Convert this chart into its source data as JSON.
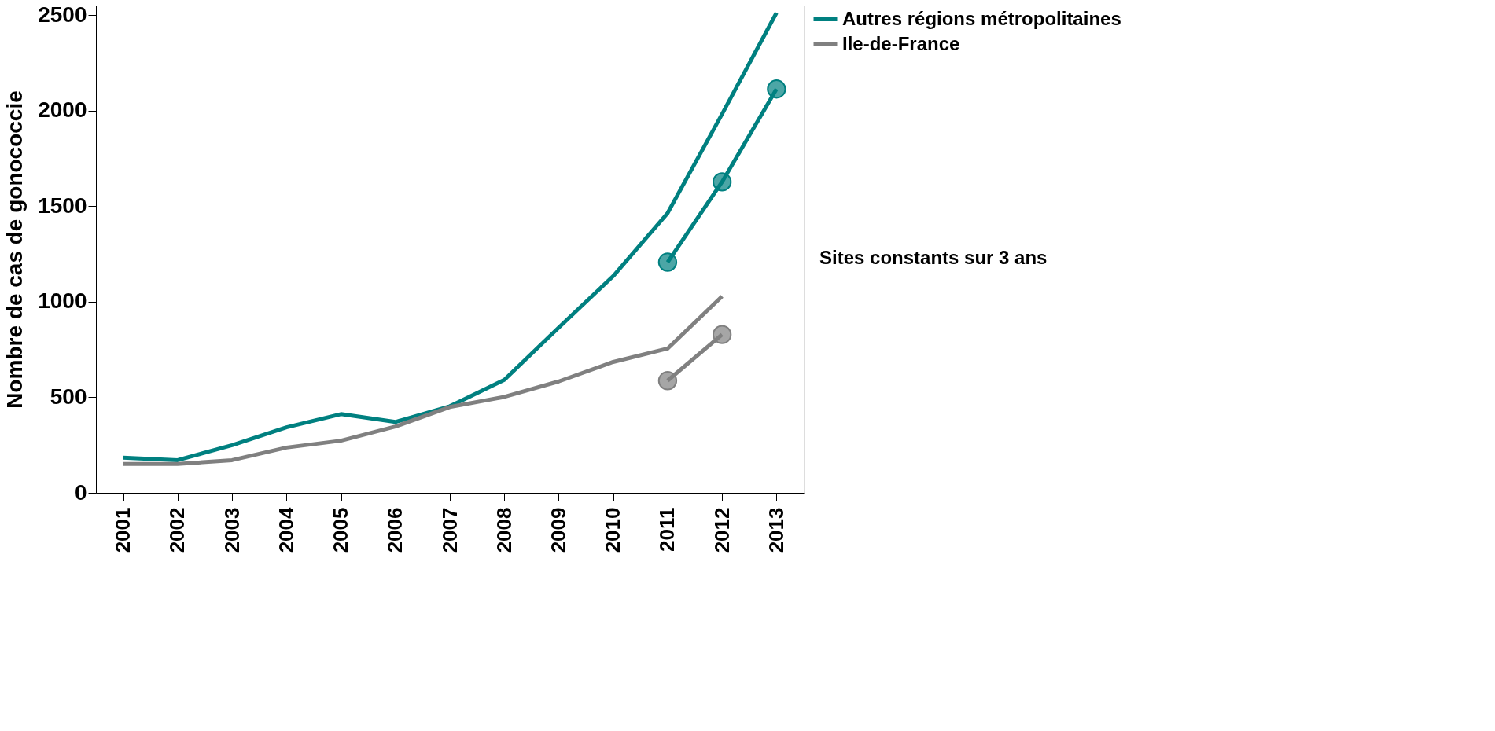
{
  "chart_data": {
    "type": "line",
    "ylabel": "Nombre de cas de gonococcie",
    "categories": [
      "2001",
      "2002",
      "2003",
      "2004",
      "2005",
      "2006",
      "2007",
      "2008",
      "2009",
      "2010",
      "2011",
      "2012",
      "2013"
    ],
    "ylim": [
      0,
      2550
    ],
    "yticks": [
      0,
      500,
      1000,
      1500,
      2000,
      2500
    ],
    "grid": false,
    "legend": "right",
    "line_style": "solid",
    "series": [
      {
        "name": "Autres régions métropolitaines",
        "color": "#008080",
        "marker": "none",
        "values": [
          184,
          171,
          249,
          343,
          412,
          371,
          453,
          591,
          865,
          1134,
          1464,
          1982,
          2512
        ]
      },
      {
        "name": "Ile-de-France",
        "color": "#808080",
        "marker": "none",
        "values": [
          151,
          151,
          171,
          237,
          273,
          347,
          449,
          502,
          583,
          685,
          755,
          1028,
          null
        ]
      },
      {
        "color": "#008080",
        "marker": "circle",
        "values": [
          null,
          null,
          null,
          null,
          null,
          null,
          null,
          null,
          null,
          null,
          1207,
          1627,
          2113
        ]
      },
      {
        "color": "#808080",
        "marker": "circle",
        "values": [
          null,
          null,
          null,
          null,
          null,
          null,
          null,
          null,
          null,
          null,
          587,
          828,
          null
        ]
      }
    ],
    "annotations": [
      "Sites constants sur 3 ans"
    ]
  }
}
